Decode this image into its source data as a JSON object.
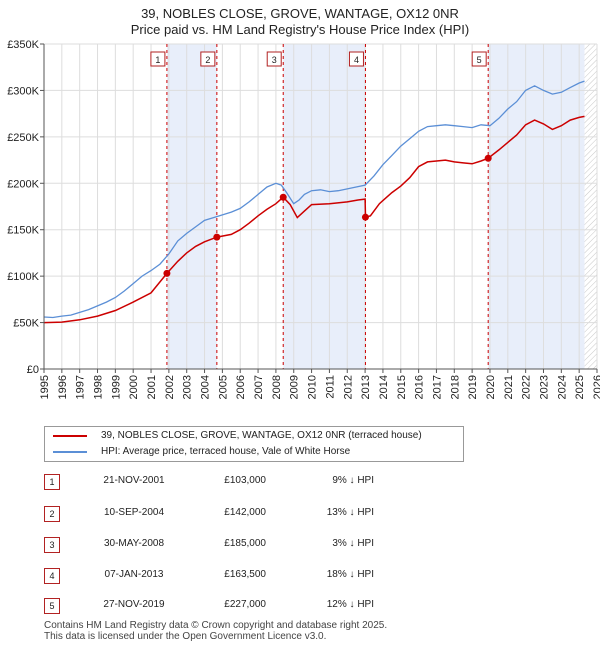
{
  "title_line1": "39, NOBLES CLOSE, GROVE, WANTAGE, OX12 0NR",
  "title_line2": "Price paid vs. HM Land Registry's House Price Index (HPI)",
  "legend": {
    "property_label": "39, NOBLES CLOSE, GROVE, WANTAGE, OX12 0NR (terraced house)",
    "hpi_label": "HPI: Average price, terraced house, Vale of White Horse"
  },
  "colors": {
    "property": "#cc0000",
    "hpi": "#5b8fd6",
    "shade": "#e8eefa",
    "grid": "#dddddd"
  },
  "sales": [
    {
      "num": "1",
      "date": "21-NOV-2001",
      "price": "£103,000",
      "hpi_diff": "9% ↓ HPI"
    },
    {
      "num": "2",
      "date": "10-SEP-2004",
      "price": "£142,000",
      "hpi_diff": "13% ↓ HPI"
    },
    {
      "num": "3",
      "date": "30-MAY-2008",
      "price": "£185,000",
      "hpi_diff": "3% ↓ HPI"
    },
    {
      "num": "4",
      "date": "07-JAN-2013",
      "price": "£163,500",
      "hpi_diff": "18% ↓ HPI"
    },
    {
      "num": "5",
      "date": "27-NOV-2019",
      "price": "£227,000",
      "hpi_diff": "12% ↓ HPI"
    }
  ],
  "footer": {
    "line1": "Contains HM Land Registry data © Crown copyright and database right 2025.",
    "line2": "This data is licensed under the Open Government Licence v3.0."
  },
  "chart_data": {
    "type": "line",
    "title": "39, NOBLES CLOSE, GROVE, WANTAGE, OX12 0NR — Price paid vs. HM Land Registry's House Price Index (HPI)",
    "xlim": [
      1995,
      2026
    ],
    "ylim": [
      0,
      350000
    ],
    "x_ticks": [
      1995,
      1996,
      1997,
      1998,
      1999,
      2000,
      2001,
      2002,
      2003,
      2004,
      2005,
      2006,
      2007,
      2008,
      2009,
      2010,
      2011,
      2012,
      2013,
      2014,
      2015,
      2016,
      2017,
      2018,
      2019,
      2020,
      2021,
      2022,
      2023,
      2024,
      2025,
      2026
    ],
    "y_ticks": [
      {
        "value": 0,
        "label": "£0"
      },
      {
        "value": 50000,
        "label": "£50K"
      },
      {
        "value": 100000,
        "label": "£100K"
      },
      {
        "value": 150000,
        "label": "£150K"
      },
      {
        "value": 200000,
        "label": "£200K"
      },
      {
        "value": 250000,
        "label": "£250K"
      },
      {
        "value": 300000,
        "label": "£300K"
      },
      {
        "value": 350000,
        "label": "£350K"
      }
    ],
    "shaded_spans": [
      [
        2001.89,
        2004.69
      ],
      [
        2008.41,
        2013.02
      ],
      [
        2019.9,
        2025.3
      ]
    ],
    "hatched_from": 2025.3,
    "sale_markers": [
      {
        "num": "1",
        "x": 2001.89,
        "y": 103000
      },
      {
        "num": "2",
        "x": 2004.69,
        "y": 142000
      },
      {
        "num": "3",
        "x": 2008.41,
        "y": 185000
      },
      {
        "num": "4",
        "x": 2013.02,
        "y": 163500
      },
      {
        "num": "5",
        "x": 2019.9,
        "y": 227000
      }
    ],
    "series": [
      {
        "name": "HPI: Average price, terraced house, Vale of White Horse",
        "x": [
          1995,
          1995.5,
          1996,
          1996.5,
          1997,
          1997.5,
          1998,
          1998.5,
          1999,
          1999.5,
          2000,
          2000.5,
          2001,
          2001.5,
          2002,
          2002.5,
          2003,
          2003.5,
          2004,
          2004.5,
          2005,
          2005.5,
          2006,
          2006.5,
          2007,
          2007.5,
          2008,
          2008.3,
          2008.6,
          2009,
          2009.3,
          2009.6,
          2010,
          2010.5,
          2011,
          2011.5,
          2012,
          2012.5,
          2013,
          2013.5,
          2014,
          2014.5,
          2015,
          2015.5,
          2016,
          2016.5,
          2017,
          2017.5,
          2018,
          2018.5,
          2019,
          2019.5,
          2020,
          2020.5,
          2021,
          2021.5,
          2022,
          2022.5,
          2023,
          2023.5,
          2024,
          2024.5,
          2025,
          2025.3
        ],
        "values": [
          56000,
          55500,
          57000,
          58000,
          61000,
          64000,
          68000,
          72000,
          77000,
          84000,
          92000,
          100000,
          106000,
          113000,
          124000,
          138000,
          146000,
          153000,
          160000,
          163000,
          166000,
          169000,
          173000,
          180000,
          188000,
          196000,
          200000,
          198000,
          190000,
          178000,
          182000,
          188000,
          192000,
          193000,
          191000,
          192000,
          194000,
          196000,
          198000,
          208000,
          220000,
          230000,
          240000,
          248000,
          256000,
          261000,
          262000,
          263000,
          262000,
          261000,
          260000,
          263000,
          262000,
          270000,
          280000,
          288000,
          300000,
          305000,
          300000,
          296000,
          298000,
          303000,
          308000,
          310000
        ]
      },
      {
        "name": "39, NOBLES CLOSE, GROVE, WANTAGE, OX12 0NR (terraced house)",
        "x": [
          1995,
          1996,
          1997,
          1998,
          1999,
          2000,
          2001,
          2001.89,
          2002.5,
          2003,
          2003.5,
          2004,
          2004.69,
          2005.5,
          2006,
          2006.5,
          2007,
          2007.5,
          2008,
          2008.41,
          2008.8,
          2009.2,
          2009.6,
          2010,
          2011,
          2012,
          2012.6,
          2013,
          2013.02,
          2013.3,
          2013.8,
          2014.5,
          2015,
          2015.5,
          2016,
          2016.5,
          2017,
          2017.5,
          2018,
          2018.5,
          2019,
          2019.5,
          2019.9,
          2020.5,
          2021,
          2021.5,
          2022,
          2022.5,
          2023,
          2023.5,
          2024,
          2024.5,
          2025,
          2025.3
        ],
        "values": [
          50000,
          50500,
          53000,
          57000,
          63000,
          72000,
          82000,
          103000,
          116000,
          125000,
          132000,
          137000,
          142000,
          145000,
          150000,
          157000,
          165000,
          172000,
          178000,
          185000,
          177000,
          163000,
          170000,
          177000,
          178000,
          180000,
          182000,
          183000,
          163500,
          165000,
          178000,
          190000,
          197000,
          206000,
          218000,
          223000,
          224000,
          225000,
          223000,
          222000,
          221000,
          224000,
          227000,
          236000,
          244000,
          252000,
          263000,
          268000,
          264000,
          258000,
          262000,
          268000,
          271000,
          272000
        ]
      }
    ]
  }
}
